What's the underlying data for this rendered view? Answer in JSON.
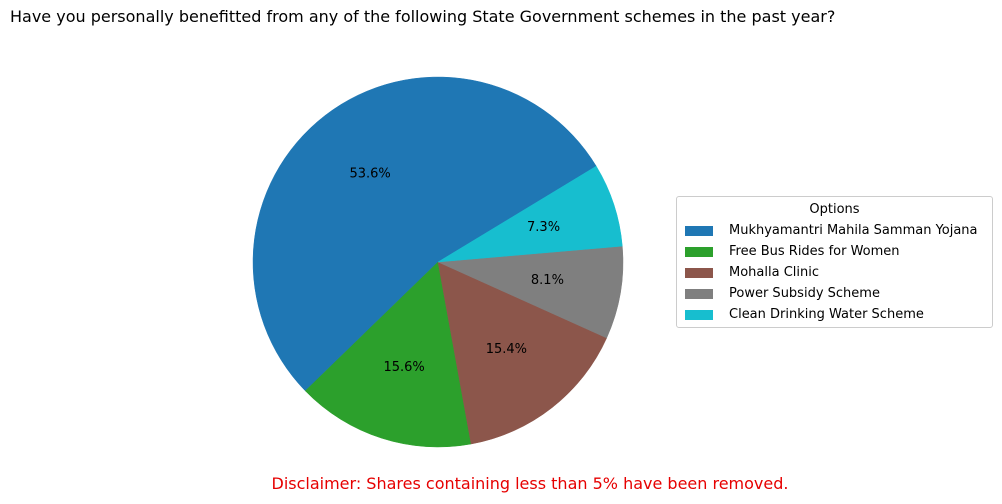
{
  "chart_data": {
    "type": "pie",
    "title": "Have you personally benefitted from any of the following State Government schemes in the past year?",
    "legend_title": "Options",
    "legend_placement": "right",
    "slices": [
      {
        "label": "Mukhyamantri Mahila Samman Yojana",
        "value": 53.6,
        "value_label": "53.6%",
        "color": "#1f77b4"
      },
      {
        "label": "Free Bus Rides for Women",
        "value": 15.6,
        "value_label": "15.6%",
        "color": "#2ca02c"
      },
      {
        "label": "Mohalla Clinic",
        "value": 15.4,
        "value_label": "15.4%",
        "color": "#8c564b"
      },
      {
        "label": "Power Subsidy Scheme",
        "value": 8.1,
        "value_label": "8.1%",
        "color": "#7f7f7f"
      },
      {
        "label": "Clean Drinking Water Scheme",
        "value": 7.3,
        "value_label": "7.3%",
        "color": "#17becf"
      }
    ],
    "disclaimer": "Disclaimer: Shares containing less than 5% have been removed."
  }
}
